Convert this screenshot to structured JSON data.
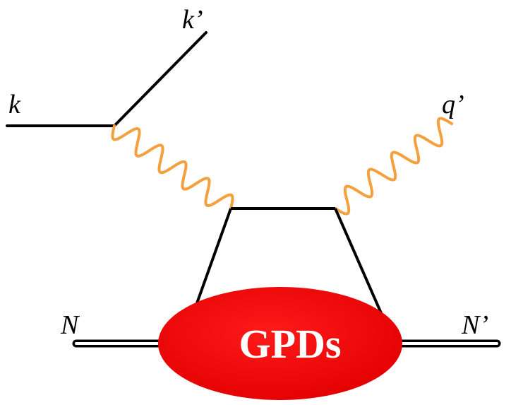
{
  "labels": {
    "k": "k",
    "k_prime": "k’",
    "q_prime": "q’",
    "N": "N",
    "N_prime": "N’"
  },
  "blob": {
    "text": "GPDs",
    "color": "#ee0000"
  },
  "colors": {
    "line": "#000000",
    "photon": "#f4a03c",
    "background": "#ffffff"
  }
}
